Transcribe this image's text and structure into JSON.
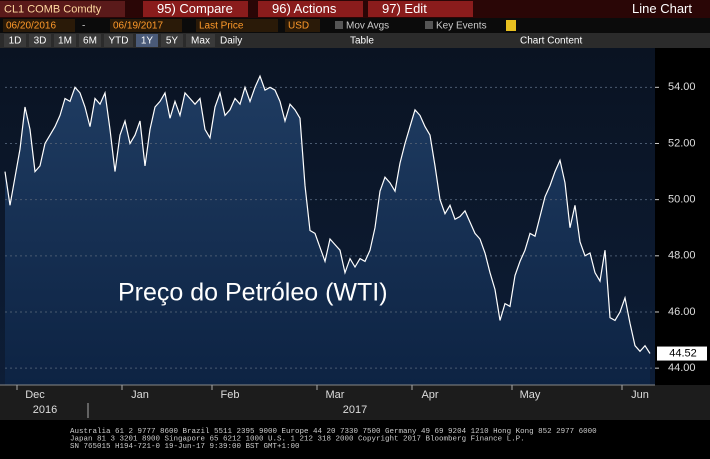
{
  "toolbar": {
    "security": "CL1 COMB Comdty",
    "buttons": [
      "95) Compare",
      "96) Actions",
      "97) Edit"
    ],
    "view": "Line Chart"
  },
  "settings": {
    "start_date": "06/20/2016",
    "separator": "-",
    "end_date": "06/19/2017",
    "field": "Last Price",
    "currency": "USD",
    "mov_avgs": "Mov Avgs",
    "key_events": "Key Events"
  },
  "ranges": {
    "periods": [
      "1D",
      "3D",
      "1M",
      "6M",
      "YTD",
      "1Y",
      "5Y",
      "Max"
    ],
    "selected": "1Y",
    "frequency": "Daily",
    "table": "Table",
    "chart_content": "Chart Content"
  },
  "chart_data": {
    "type": "line",
    "annotation": "Preço do Petróleo (WTI)",
    "color": "#ffffff",
    "grid": true,
    "values": [
      51.0,
      49.8,
      50.8,
      51.8,
      53.3,
      52.5,
      51.0,
      51.2,
      52.0,
      52.3,
      52.6,
      53.0,
      53.6,
      53.5,
      54.0,
      53.8,
      53.3,
      52.6,
      53.6,
      53.4,
      53.8,
      52.5,
      51.0,
      52.3,
      52.8,
      52.0,
      52.3,
      52.8,
      51.2,
      52.5,
      53.3,
      53.5,
      53.8,
      52.9,
      53.5,
      53.0,
      53.8,
      53.6,
      53.4,
      53.6,
      52.5,
      52.2,
      53.3,
      53.8,
      53.0,
      53.2,
      53.6,
      53.4,
      54.0,
      53.5,
      54.0,
      54.4,
      53.9,
      54.0,
      53.9,
      53.5,
      52.8,
      53.4,
      53.2,
      52.9,
      50.5,
      48.9,
      48.8,
      48.3,
      47.8,
      48.6,
      48.4,
      48.2,
      47.4,
      47.9,
      47.6,
      47.9,
      47.8,
      48.2,
      49.0,
      50.3,
      50.8,
      50.6,
      50.3,
      51.3,
      52.0,
      52.6,
      53.2,
      53.0,
      52.6,
      52.3,
      51.2,
      50.0,
      49.5,
      49.8,
      49.3,
      49.4,
      49.6,
      49.2,
      48.8,
      48.6,
      48.1,
      47.4,
      46.8,
      45.7,
      46.3,
      46.2,
      47.3,
      47.8,
      48.2,
      48.8,
      48.7,
      49.4,
      50.1,
      50.5,
      51.0,
      51.4,
      50.6,
      49.0,
      49.8,
      48.5,
      48.0,
      48.1,
      47.4,
      47.1,
      48.2,
      45.8,
      45.7,
      46.0,
      46.5,
      45.6,
      44.8,
      44.6,
      44.8,
      44.52
    ],
    "last_label": "44.52",
    "ylim": [
      43.4,
      55.4
    ],
    "yticks": [
      {
        "value": 44,
        "label": "44.00"
      },
      {
        "value": 46,
        "label": "46.00"
      },
      {
        "value": 48,
        "label": "48.00"
      },
      {
        "value": 50,
        "label": "50.00"
      },
      {
        "value": 52,
        "label": "52.00"
      },
      {
        "value": 54,
        "label": "54.00"
      }
    ],
    "xticks": [
      {
        "value": 6,
        "label": "Dec"
      },
      {
        "value": 27,
        "label": "Jan"
      },
      {
        "value": 45,
        "label": "Feb"
      },
      {
        "value": 66,
        "label": "Mar"
      },
      {
        "value": 85,
        "label": "Apr"
      },
      {
        "value": 105,
        "label": "May"
      },
      {
        "value": 127,
        "label": "Jun"
      }
    ],
    "year_labels": [
      {
        "value": 6,
        "label": "2016"
      },
      {
        "value": 66,
        "label": "2017"
      }
    ]
  },
  "footer": [
    "Australia 61 2 9777 8600 Brazil 5511 2395 9000 Europe 44 20 7330 7500 Germany 49 69 9204 1210 Hong Kong 852 2977 6000",
    "Japan 81 3 3201 8900        Singapore 65 6212 1000      U.S. 1 212 318 2000         Copyright 2017 Bloomberg Finance L.P.",
    "SN 765015 H194-721-0 19-Jun-17  9:39:00 BST  GMT+1:00"
  ]
}
